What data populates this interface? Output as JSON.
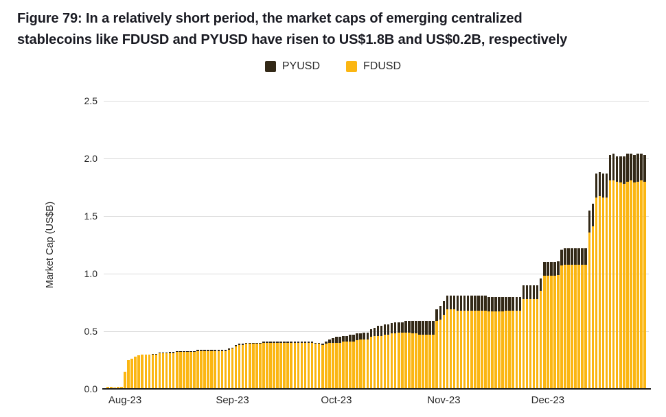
{
  "figure": {
    "title_line1": "Figure 79: In a relatively short period, the market caps of emerging centralized",
    "title_line2": "stablecoins like FDUSD and PYUSD have risen to US$1.8B and US$0.2B, respectively"
  },
  "legend": [
    {
      "label": "PYUSD",
      "color": "#332917"
    },
    {
      "label": "FDUSD",
      "color": "#FBB612"
    }
  ],
  "chart_data": {
    "type": "bar",
    "stacked": true,
    "title": "Figure 79: In a relatively short period, the market caps of emerging centralized stablecoins like FDUSD and PYUSD have risen to US$1.8B and US$0.2B, respectively",
    "xlabel": "",
    "ylabel": "Market Cap (US$B)",
    "ylim": [
      0,
      2.5
    ],
    "yticks": [
      0.0,
      0.5,
      1.0,
      1.5,
      2.0,
      2.5
    ],
    "grid": "horizontal",
    "legend_position": "top",
    "x_start": "2023-07-27",
    "x_freq": "daily",
    "xticklabels": [
      "Aug-23",
      "Sep-23",
      "Oct-23",
      "Nov-23",
      "Dec-23"
    ],
    "xtick_indices": [
      5,
      36,
      66,
      97,
      127
    ],
    "series": [
      {
        "name": "FDUSD",
        "color": "#FBB612",
        "values": [
          0.02,
          0.02,
          0.01,
          0.02,
          0.02,
          0.15,
          0.25,
          0.26,
          0.28,
          0.29,
          0.3,
          0.3,
          0.3,
          0.3,
          0.3,
          0.31,
          0.31,
          0.31,
          0.31,
          0.31,
          0.32,
          0.32,
          0.32,
          0.32,
          0.32,
          0.32,
          0.33,
          0.33,
          0.33,
          0.33,
          0.33,
          0.33,
          0.33,
          0.33,
          0.33,
          0.34,
          0.35,
          0.37,
          0.38,
          0.38,
          0.39,
          0.39,
          0.39,
          0.39,
          0.39,
          0.4,
          0.4,
          0.4,
          0.4,
          0.4,
          0.4,
          0.4,
          0.4,
          0.4,
          0.4,
          0.4,
          0.4,
          0.4,
          0.4,
          0.4,
          0.39,
          0.39,
          0.38,
          0.39,
          0.4,
          0.4,
          0.4,
          0.4,
          0.41,
          0.41,
          0.41,
          0.41,
          0.42,
          0.43,
          0.43,
          0.43,
          0.45,
          0.46,
          0.46,
          0.46,
          0.47,
          0.47,
          0.48,
          0.48,
          0.49,
          0.49,
          0.49,
          0.49,
          0.48,
          0.48,
          0.47,
          0.47,
          0.47,
          0.47,
          0.47,
          0.59,
          0.6,
          0.64,
          0.69,
          0.69,
          0.69,
          0.68,
          0.68,
          0.68,
          0.68,
          0.68,
          0.68,
          0.68,
          0.68,
          0.68,
          0.67,
          0.67,
          0.67,
          0.67,
          0.67,
          0.68,
          0.68,
          0.68,
          0.68,
          0.68,
          0.78,
          0.78,
          0.78,
          0.78,
          0.78,
          0.85,
          0.98,
          0.98,
          0.98,
          0.98,
          0.99,
          1.07,
          1.08,
          1.08,
          1.08,
          1.08,
          1.08,
          1.08,
          1.08,
          1.36,
          1.41,
          1.66,
          1.67,
          1.66,
          1.66,
          1.81,
          1.81,
          1.8,
          1.79,
          1.78,
          1.8,
          1.81,
          1.79,
          1.8,
          1.81,
          1.8
        ]
      },
      {
        "name": "PYUSD",
        "color": "#332917",
        "values": [
          0,
          0,
          0,
          0,
          0,
          0,
          0,
          0,
          0,
          0,
          0,
          0,
          0,
          0.005,
          0.005,
          0.005,
          0.005,
          0.005,
          0.01,
          0.01,
          0.01,
          0.01,
          0.01,
          0.01,
          0.01,
          0.01,
          0.01,
          0.01,
          0.01,
          0.01,
          0.01,
          0.01,
          0.01,
          0.01,
          0.01,
          0.01,
          0.01,
          0.01,
          0.01,
          0.01,
          0.01,
          0.01,
          0.01,
          0.01,
          0.01,
          0.01,
          0.01,
          0.01,
          0.01,
          0.01,
          0.01,
          0.01,
          0.01,
          0.01,
          0.01,
          0.01,
          0.01,
          0.01,
          0.01,
          0.01,
          0.01,
          0.01,
          0.01,
          0.02,
          0.03,
          0.04,
          0.05,
          0.05,
          0.05,
          0.05,
          0.06,
          0.06,
          0.06,
          0.05,
          0.06,
          0.06,
          0.07,
          0.07,
          0.09,
          0.09,
          0.09,
          0.09,
          0.09,
          0.1,
          0.09,
          0.09,
          0.1,
          0.1,
          0.11,
          0.11,
          0.12,
          0.12,
          0.12,
          0.12,
          0.12,
          0.1,
          0.12,
          0.12,
          0.12,
          0.12,
          0.12,
          0.13,
          0.13,
          0.13,
          0.13,
          0.13,
          0.13,
          0.13,
          0.13,
          0.13,
          0.13,
          0.13,
          0.13,
          0.13,
          0.13,
          0.12,
          0.12,
          0.12,
          0.12,
          0.12,
          0.12,
          0.12,
          0.12,
          0.12,
          0.12,
          0.11,
          0.12,
          0.12,
          0.12,
          0.12,
          0.12,
          0.14,
          0.14,
          0.14,
          0.14,
          0.14,
          0.14,
          0.14,
          0.14,
          0.19,
          0.2,
          0.21,
          0.21,
          0.21,
          0.21,
          0.22,
          0.23,
          0.22,
          0.23,
          0.24,
          0.24,
          0.23,
          0.24,
          0.24,
          0.23,
          0.23
        ]
      }
    ]
  }
}
